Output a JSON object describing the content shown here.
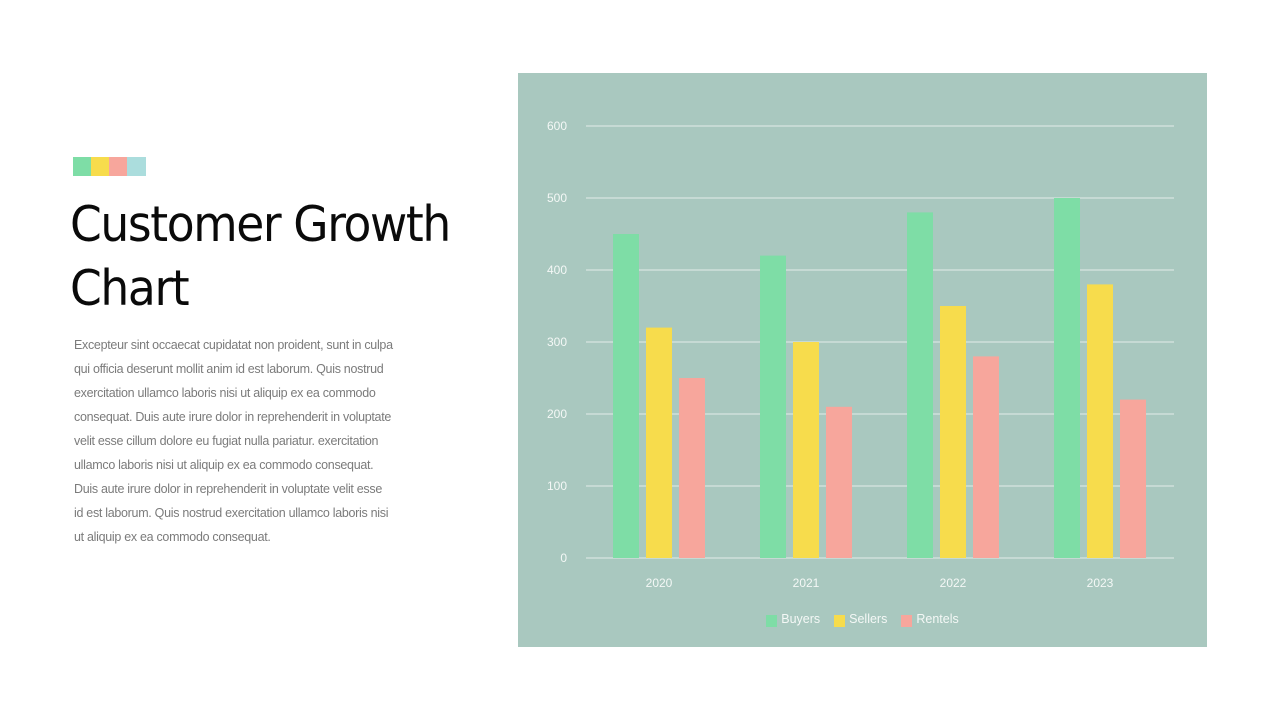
{
  "slide": {
    "swatch_colors": [
      "#7edda6",
      "#f7dc4c",
      "#f7a69c",
      "#abdddd"
    ],
    "title_line1": "Customer Growth",
    "title_line2": "Chart",
    "body_lines": [
      "Excepteur sint occaecat cupidatat non proident, sunt in culpa",
      "qui officia  deserunt mollit anim id est laborum. Quis nostrud",
      "exercitation ullamco laboris nisi ut aliquip ex ea commodo",
      "consequat. Duis aute irure dolor in reprehenderit in voluptate",
      "velit esse cillum dolore eu fugiat nulla  pariatur. exercitation",
      "ullamco laboris nisi ut aliquip ex ea commodo consequat.",
      "Duis aute irure dolor in reprehenderit in voluptate velit esse",
      "id est laborum. Quis nostrud exercitation ullamco laboris nisi",
      "ut aliquip ex ea commodo consequat."
    ]
  },
  "colors": {
    "panel_bg": "#a9c8bf",
    "gridline": "#e3ece8",
    "buyers": "#7edda6",
    "sellers": "#f7dc4c",
    "rentels": "#f7a69c"
  },
  "chart_data": {
    "type": "bar",
    "title": "Customer Growth Chart",
    "xlabel": "",
    "ylabel": "",
    "categories": [
      "2020",
      "2021",
      "2022",
      "2023"
    ],
    "series": [
      {
        "name": "Buyers",
        "color": "#7edda6",
        "values": [
          450,
          420,
          480,
          500
        ]
      },
      {
        "name": "Sellers",
        "color": "#f7dc4c",
        "values": [
          320,
          300,
          350,
          380
        ]
      },
      {
        "name": "Rentels",
        "color": "#f7a69c",
        "values": [
          250,
          210,
          280,
          220
        ]
      }
    ],
    "ylim": [
      0,
      600
    ],
    "yticks": [
      0,
      100,
      200,
      300,
      400,
      500,
      600
    ],
    "grid": true,
    "legend_position": "bottom"
  }
}
